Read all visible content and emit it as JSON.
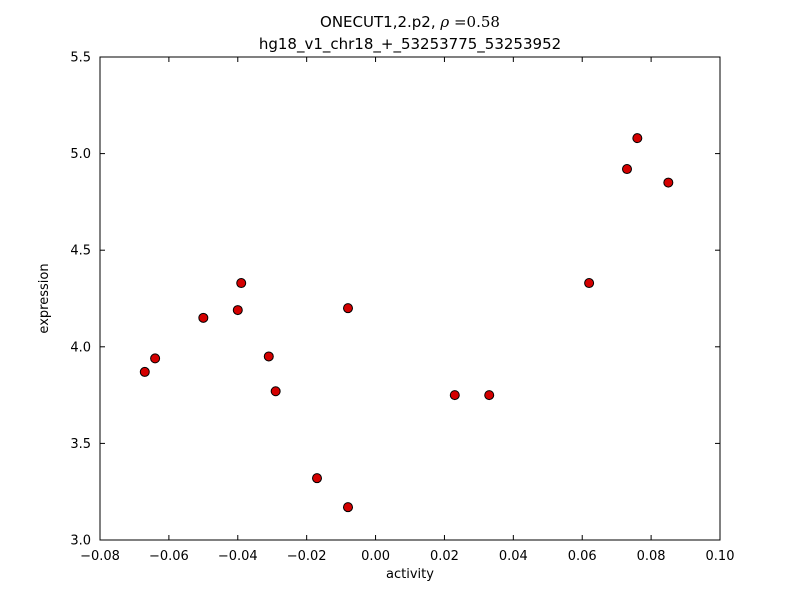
{
  "title": {
    "line1_prefix": "ONECUT1,2.p2, ",
    "line1_rho": "ρ",
    "line1_suffix": " =0.58",
    "line2": "hg18_v1_chr18_+_53253775_53253952"
  },
  "chart_data": {
    "type": "scatter",
    "title": "ONECUT1,2.p2, ρ =0.58",
    "subtitle": "hg18_v1_chr18_+_53253775_53253952",
    "xlabel": "activity",
    "ylabel": "expression",
    "xlim": [
      -0.08,
      0.1
    ],
    "ylim": [
      3.0,
      5.5
    ],
    "grid": false,
    "legend": "none",
    "xticks": [
      -0.08,
      -0.06,
      -0.04,
      -0.02,
      0.0,
      0.02,
      0.04,
      0.06,
      0.08,
      0.1
    ],
    "xtick_labels": [
      "−0.08",
      "−0.06",
      "−0.04",
      "−0.02",
      "0.00",
      "0.02",
      "0.04",
      "0.06",
      "0.08",
      "0.10"
    ],
    "yticks": [
      3.0,
      3.5,
      4.0,
      4.5,
      5.0,
      5.5
    ],
    "ytick_labels": [
      "3.0",
      "3.5",
      "4.0",
      "4.5",
      "5.0",
      "5.5"
    ],
    "marker": {
      "shape": "circle",
      "fill": "#d40000",
      "edge": "#000000",
      "radius": 4.5
    },
    "points": [
      {
        "x": -0.067,
        "y": 3.87
      },
      {
        "x": -0.064,
        "y": 3.94
      },
      {
        "x": -0.05,
        "y": 4.15
      },
      {
        "x": -0.04,
        "y": 4.19
      },
      {
        "x": -0.039,
        "y": 4.33
      },
      {
        "x": -0.031,
        "y": 3.95
      },
      {
        "x": -0.029,
        "y": 3.77
      },
      {
        "x": -0.017,
        "y": 3.32
      },
      {
        "x": -0.008,
        "y": 3.17
      },
      {
        "x": -0.008,
        "y": 4.2
      },
      {
        "x": 0.023,
        "y": 3.75
      },
      {
        "x": 0.033,
        "y": 3.75
      },
      {
        "x": 0.062,
        "y": 4.33
      },
      {
        "x": 0.073,
        "y": 4.92
      },
      {
        "x": 0.076,
        "y": 5.08
      },
      {
        "x": 0.085,
        "y": 4.85
      }
    ]
  }
}
